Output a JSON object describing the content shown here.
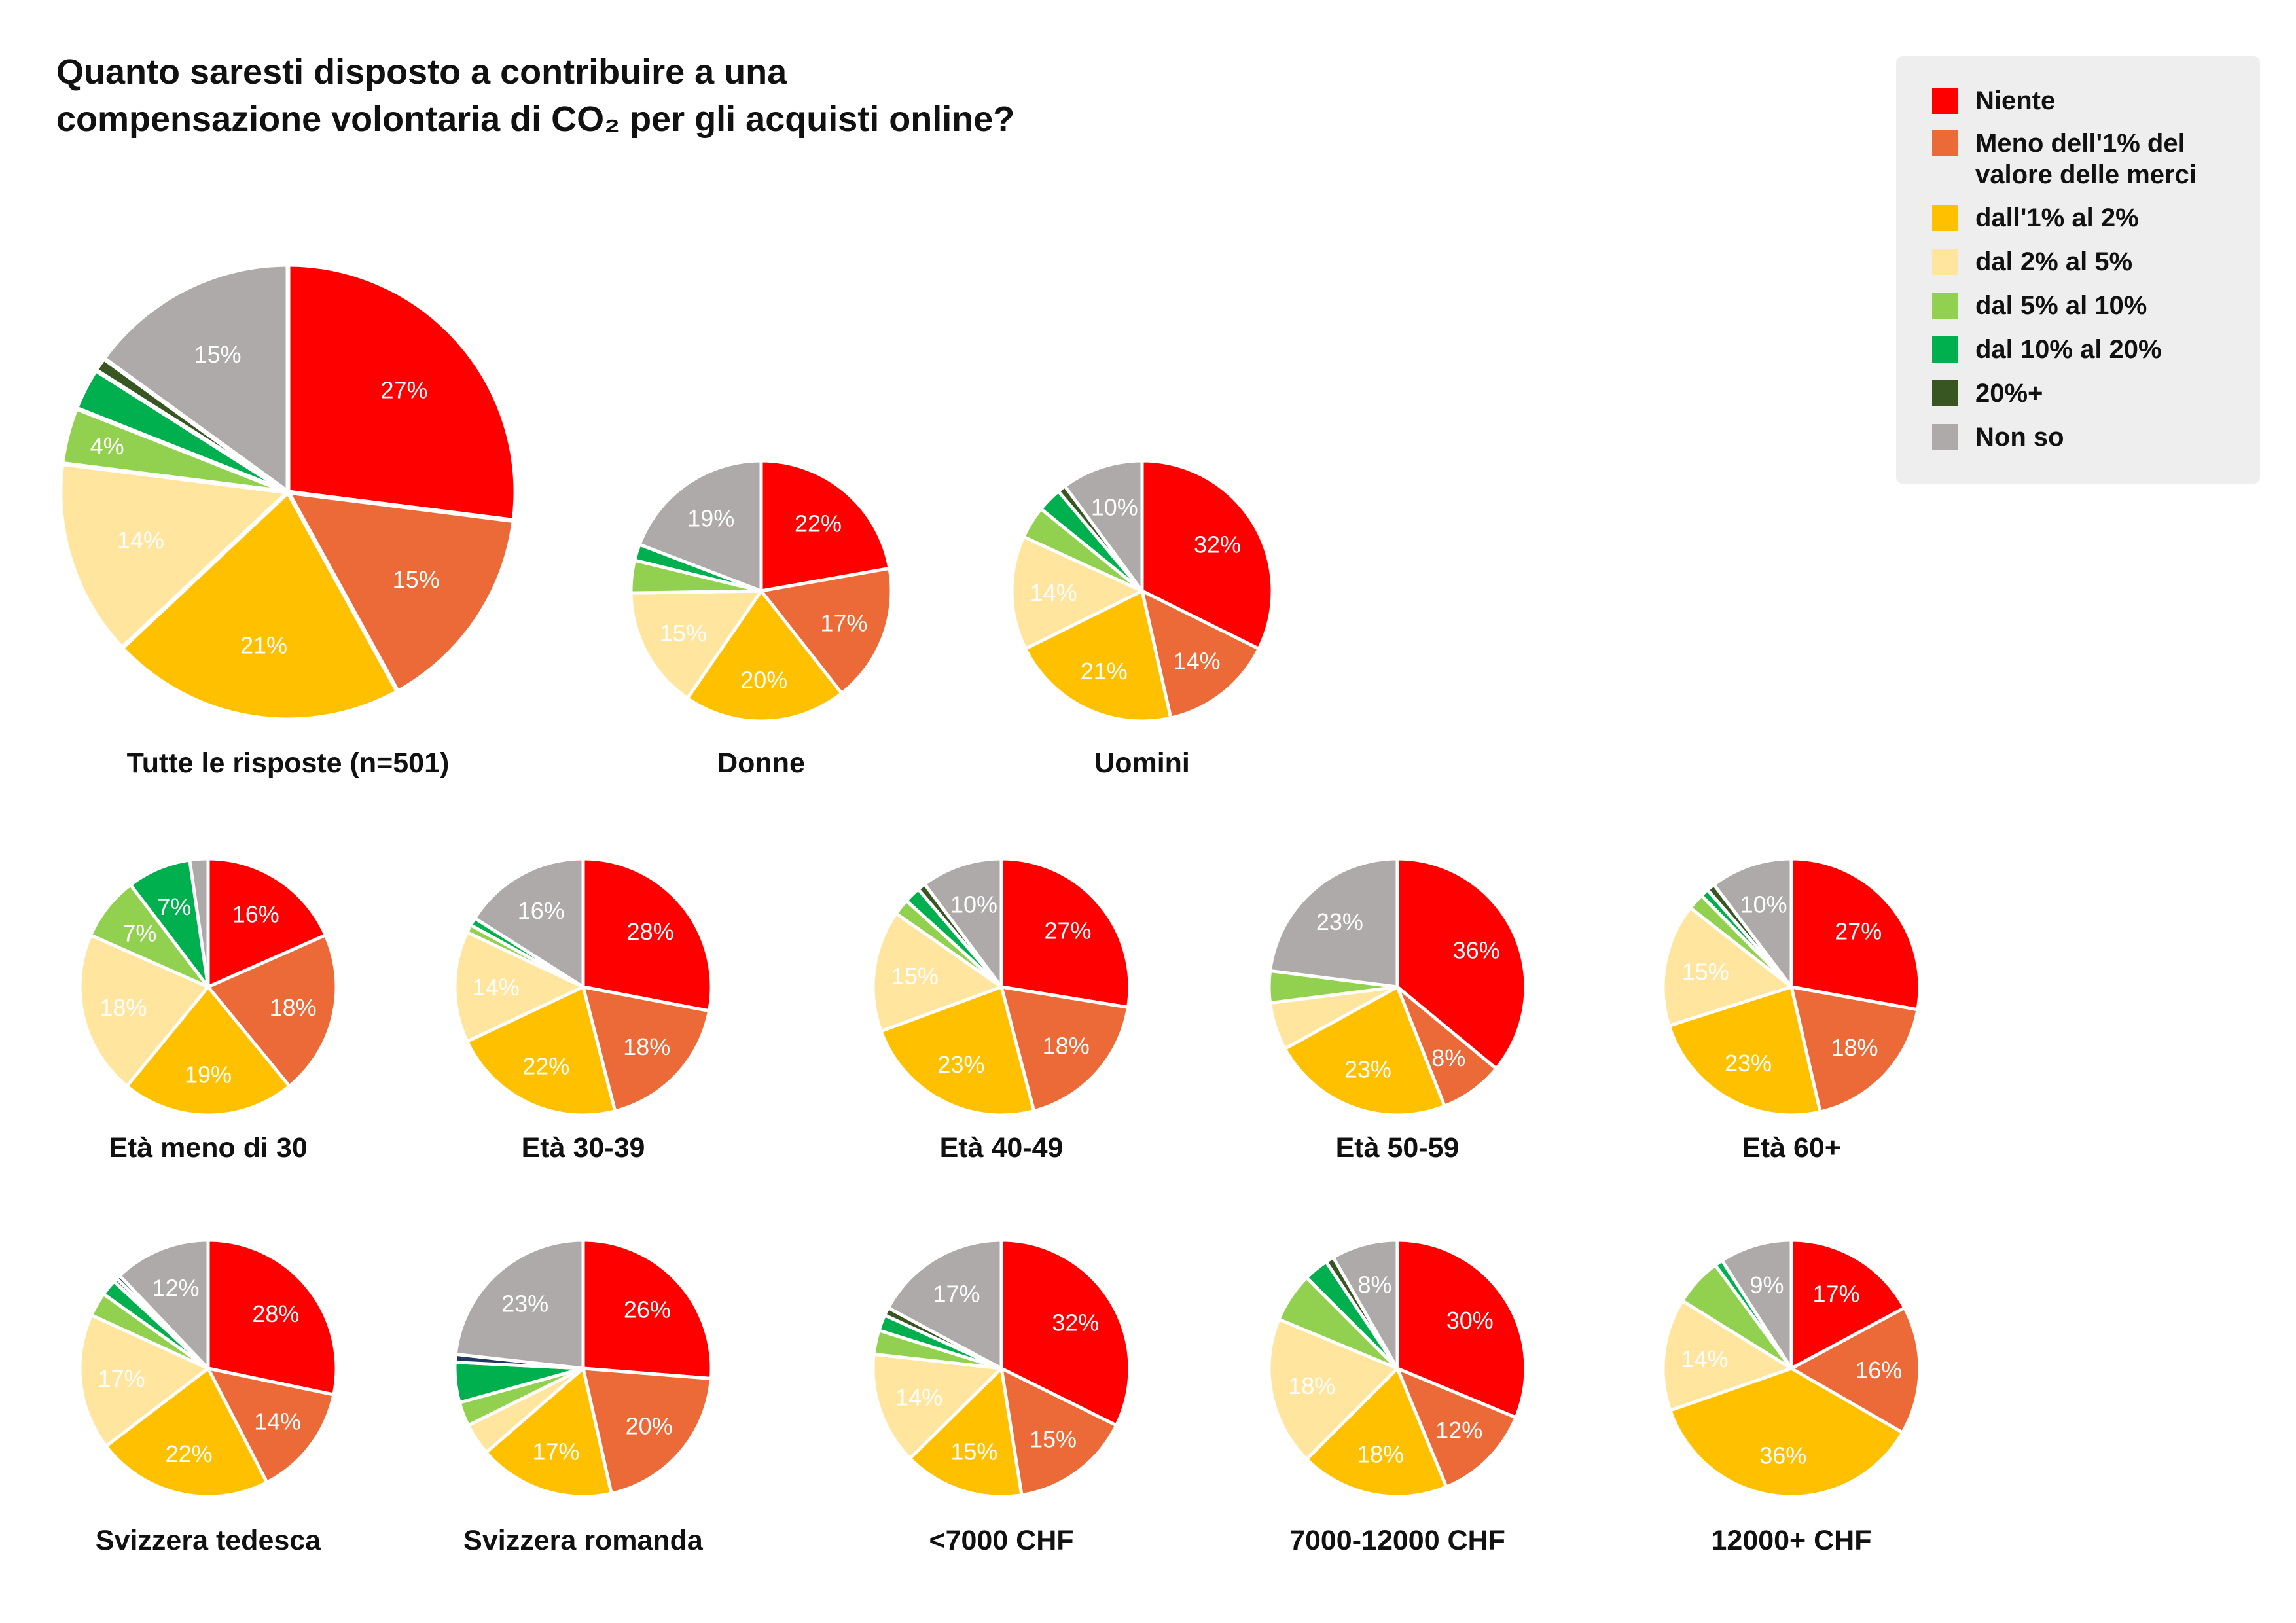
{
  "title": "Quanto saresti disposto a contribuire a una\ncompensazione volontaria di CO₂ per gli acquisti online?",
  "colors": {
    "niente": "#fe0000",
    "meno1": "#eb6a37",
    "uno_due": "#ffc000",
    "due_cinque": "#ffe59d",
    "cinque_dieci": "#92d150",
    "dieci_venti": "#00b04f",
    "venti_plus": "#375622",
    "non_so": "#aeaaaa",
    "other_blue": "#203864"
  },
  "legend": [
    {
      "label": "Niente",
      "color": "#fe0000"
    },
    {
      "label": "Meno dell'1% del\nvalore delle merci",
      "color": "#eb6a37"
    },
    {
      "label": "dall'1% al 2%",
      "color": "#ffc000"
    },
    {
      "label": "dal 2% al 5%",
      "color": "#ffe59d"
    },
    {
      "label": "dal 5% al 10%",
      "color": "#92d150"
    },
    {
      "label": "dal 10% al 20%",
      "color": "#00b04f"
    },
    {
      "label": "20%+",
      "color": "#375622"
    },
    {
      "label": "Non so",
      "color": "#aeaaaa"
    }
  ],
  "chart_data": {
    "type": "pie",
    "title": "Quanto saresti disposto a contribuire a una compensazione volontaria di CO₂ per gli acquisti online?",
    "categories": [
      "Niente",
      "Meno dell'1% del valore delle merci",
      "dall'1% al 2%",
      "dal 2% al 5%",
      "dal 5% al 10%",
      "dal 10% al 20%",
      "20%+",
      "Non so"
    ],
    "legend_position": "top-right",
    "pies": [
      {
        "label": "Tutte le risposte (n=501)",
        "values": [
          27,
          15,
          21,
          14,
          4,
          3,
          1,
          15
        ]
      },
      {
        "label": "Donne",
        "values": [
          22,
          17,
          20,
          15,
          4,
          2,
          0,
          19
        ]
      },
      {
        "label": "Uomini",
        "values": [
          32,
          14,
          21,
          14,
          4,
          3,
          1,
          10
        ]
      },
      {
        "label": "Età meno di 30",
        "values": [
          16,
          18,
          19,
          18,
          7,
          7,
          0,
          2
        ]
      },
      {
        "label": "Età 30-39",
        "values": [
          28,
          18,
          22,
          14,
          1,
          1,
          0,
          16
        ]
      },
      {
        "label": "Età 40-49",
        "values": [
          27,
          18,
          23,
          15,
          2,
          2,
          1,
          10
        ]
      },
      {
        "label": "Età 50-59",
        "values": [
          36,
          8,
          23,
          6,
          4,
          0,
          0,
          23
        ]
      },
      {
        "label": "Età 60+",
        "values": [
          27,
          18,
          23,
          15,
          2,
          1,
          1,
          10
        ]
      },
      {
        "label": "Svizzera tedesca",
        "values": [
          28,
          14,
          22,
          17,
          3,
          2,
          0.5,
          12
        ],
        "other": 0.5
      },
      {
        "label": "Svizzera romanda",
        "values": [
          26,
          20,
          17,
          4,
          3,
          5,
          0,
          23
        ],
        "other": 1
      },
      {
        "label": "<7000 CHF",
        "values": [
          32,
          15,
          15,
          14,
          3,
          2,
          1,
          17
        ]
      },
      {
        "label": "7000-12000 CHF",
        "values": [
          30,
          12,
          18,
          18,
          6,
          3,
          1,
          8
        ]
      },
      {
        "label": "12000+ CHF",
        "values": [
          17,
          16,
          36,
          14,
          6,
          1,
          0,
          9
        ]
      }
    ]
  }
}
